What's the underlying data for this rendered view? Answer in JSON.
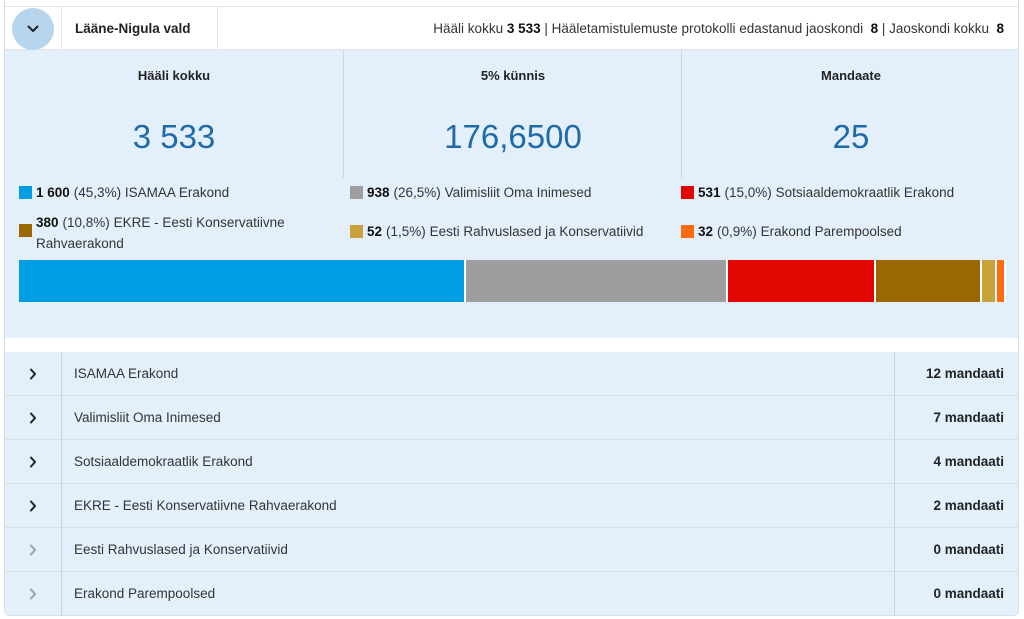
{
  "header": {
    "title": "Lääne-Nigula vald",
    "stats_prefix_1": "Hääli kokku",
    "votes_total": "3 533",
    "stats_prefix_2": "| Hääletamistulemuste protokolli edastanud jaoskondi",
    "reported_districts": "8",
    "stats_prefix_3": "| Jaoskondi kokku",
    "districts_total": "8"
  },
  "summary": {
    "columns": [
      {
        "label": "Hääli kokku",
        "value": "3 533"
      },
      {
        "label": "5% künnis",
        "value": "176,6500"
      },
      {
        "label": "Mandaate",
        "value": "25"
      }
    ]
  },
  "legend": [
    {
      "votes": "1 600",
      "pct": "(45,3%)",
      "name": "ISAMAA Erakond",
      "color": "#009fe3"
    },
    {
      "votes": "938",
      "pct": "(26,5%)",
      "name": "Valimisliit Oma Inimesed",
      "color": "#9e9e9e"
    },
    {
      "votes": "531",
      "pct": "(15,0%)",
      "name": "Sotsiaaldemokraatlik Erakond",
      "color": "#e10600"
    },
    {
      "votes": "380",
      "pct": "(10,8%)",
      "name": "EKRE - Eesti Konservatiivne Rahvaerakond",
      "color": "#9a6700"
    },
    {
      "votes": "52",
      "pct": "(1,5%)",
      "name": "Eesti Rahvuslased ja Konservatiivid",
      "color": "#c9a23c"
    },
    {
      "votes": "32",
      "pct": "(0,9%)",
      "name": "Erakond Parempoolsed",
      "color": "#ff6c0f"
    }
  ],
  "bar_shares": [
    45.3,
    26.5,
    15.0,
    10.8,
    1.5,
    0.9
  ],
  "parties": [
    {
      "name": "ISAMAA Erakond",
      "mandates": "12 mandaati"
    },
    {
      "name": "Valimisliit Oma Inimesed",
      "mandates": "7 mandaati"
    },
    {
      "name": "Sotsiaaldemokraatlik Erakond",
      "mandates": "4 mandaati"
    },
    {
      "name": "EKRE - Eesti Konservatiivne Rahvaerakond",
      "mandates": "2 mandaati"
    },
    {
      "name": "Eesti Rahvuslased ja Konservatiivid",
      "mandates": "0 mandaati"
    },
    {
      "name": "Erakond Parempoolsed",
      "mandates": "0 mandaati"
    }
  ],
  "icons": {
    "collapse": "chevron-down-icon",
    "expand": "chevron-right-icon"
  }
}
